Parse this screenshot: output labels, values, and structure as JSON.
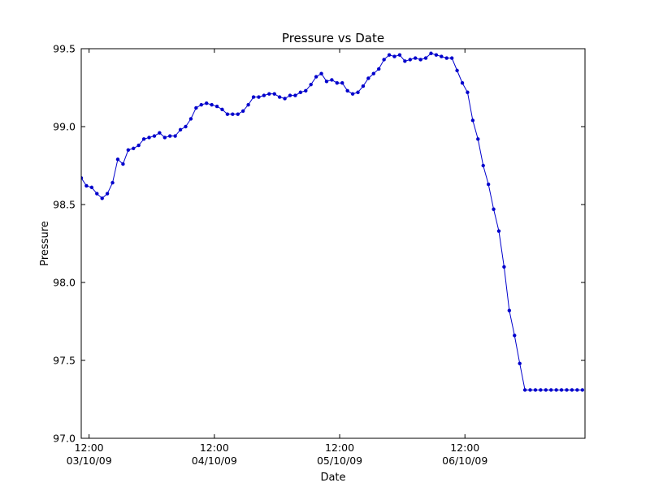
{
  "chart_data": {
    "type": "line",
    "title": "Pressure vs Date",
    "xlabel": "Date",
    "ylabel": "Pressure",
    "ylim": [
      97.0,
      99.5
    ],
    "xlim": [
      "2009-10-03 10:30",
      "2009-10-07 11:00"
    ],
    "yticks": [
      "97.0",
      "97.5",
      "98.0",
      "98.5",
      "99.0",
      "99.5"
    ],
    "xticks": [
      {
        "at": "2009-10-03 12:00",
        "time": "12:00",
        "date": "03/10/09"
      },
      {
        "at": "2009-10-04 12:00",
        "time": "12:00",
        "date": "04/10/09"
      },
      {
        "at": "2009-10-05 12:00",
        "time": "12:00",
        "date": "05/10/09"
      },
      {
        "at": "2009-10-06 12:00",
        "time": "12:00",
        "date": "06/10/09"
      }
    ],
    "grid": false,
    "line_color": "#0000cc",
    "marker_color": "#0000cc",
    "series": [
      {
        "x": [
          "2009-10-03 10:30",
          "2009-10-03 11:30",
          "2009-10-03 12:30",
          "2009-10-03 13:30",
          "2009-10-03 14:30",
          "2009-10-03 15:30",
          "2009-10-03 16:30",
          "2009-10-03 17:30",
          "2009-10-03 18:30",
          "2009-10-03 19:30",
          "2009-10-03 20:30",
          "2009-10-03 21:30",
          "2009-10-03 22:30",
          "2009-10-03 23:30",
          "2009-10-04 00:30",
          "2009-10-04 01:30",
          "2009-10-04 02:30",
          "2009-10-04 03:30",
          "2009-10-04 04:30",
          "2009-10-04 05:30",
          "2009-10-04 06:30",
          "2009-10-04 07:30",
          "2009-10-04 08:30",
          "2009-10-04 09:30",
          "2009-10-04 10:30",
          "2009-10-04 11:30",
          "2009-10-04 12:30",
          "2009-10-04 13:30",
          "2009-10-04 14:30",
          "2009-10-04 15:30",
          "2009-10-04 16:30",
          "2009-10-04 17:30",
          "2009-10-04 18:30",
          "2009-10-04 19:30",
          "2009-10-04 20:30",
          "2009-10-04 21:30",
          "2009-10-04 22:30",
          "2009-10-04 23:30",
          "2009-10-05 00:30",
          "2009-10-05 01:30",
          "2009-10-05 02:30",
          "2009-10-05 03:30",
          "2009-10-05 04:30",
          "2009-10-05 05:30",
          "2009-10-05 06:30",
          "2009-10-05 07:30",
          "2009-10-05 08:30",
          "2009-10-05 09:30",
          "2009-10-05 10:30",
          "2009-10-05 11:30",
          "2009-10-05 12:30",
          "2009-10-05 13:30",
          "2009-10-05 14:30",
          "2009-10-05 15:30",
          "2009-10-05 16:30",
          "2009-10-05 17:30",
          "2009-10-05 18:30",
          "2009-10-05 19:30",
          "2009-10-05 20:30",
          "2009-10-05 21:30",
          "2009-10-05 22:30",
          "2009-10-05 23:30",
          "2009-10-06 00:30",
          "2009-10-06 01:30",
          "2009-10-06 02:30",
          "2009-10-06 03:30",
          "2009-10-06 04:30",
          "2009-10-06 05:30",
          "2009-10-06 06:30",
          "2009-10-06 07:30",
          "2009-10-06 08:30",
          "2009-10-06 09:30",
          "2009-10-06 10:30",
          "2009-10-06 11:30",
          "2009-10-06 12:30",
          "2009-10-06 13:30",
          "2009-10-06 14:30",
          "2009-10-06 15:30",
          "2009-10-06 16:30",
          "2009-10-06 17:30",
          "2009-10-06 18:30",
          "2009-10-06 19:30",
          "2009-10-06 20:30",
          "2009-10-06 21:30",
          "2009-10-06 22:30",
          "2009-10-06 23:30",
          "2009-10-07 00:30",
          "2009-10-07 01:30",
          "2009-10-07 02:30",
          "2009-10-07 03:30",
          "2009-10-07 04:30",
          "2009-10-07 05:30",
          "2009-10-07 06:30",
          "2009-10-07 07:30",
          "2009-10-07 08:30",
          "2009-10-07 09:30",
          "2009-10-07 10:30"
        ],
        "y": [
          98.67,
          98.62,
          98.61,
          98.57,
          98.54,
          98.57,
          98.64,
          98.79,
          98.76,
          98.85,
          98.86,
          98.88,
          98.92,
          98.93,
          98.94,
          98.96,
          98.93,
          98.94,
          98.94,
          98.98,
          99.0,
          99.05,
          99.12,
          99.14,
          99.15,
          99.14,
          99.13,
          99.11,
          99.08,
          99.08,
          99.08,
          99.1,
          99.14,
          99.19,
          99.19,
          99.2,
          99.21,
          99.21,
          99.19,
          99.18,
          99.2,
          99.2,
          99.22,
          99.23,
          99.27,
          99.32,
          99.34,
          99.29,
          99.3,
          99.28,
          99.28,
          99.23,
          99.21,
          99.22,
          99.26,
          99.31,
          99.34,
          99.37,
          99.43,
          99.46,
          99.45,
          99.46,
          99.42,
          99.43,
          99.44,
          99.43,
          99.44,
          99.47,
          99.46,
          99.45,
          99.44,
          99.44,
          99.36,
          99.28,
          99.22,
          99.04,
          98.92,
          98.75,
          98.63,
          98.47,
          98.33,
          98.1,
          97.82,
          97.66,
          97.48,
          97.31,
          97.31,
          97.31,
          97.31,
          97.31,
          97.31,
          97.31,
          97.31,
          97.31,
          97.31,
          97.31,
          97.31
        ]
      }
    ]
  }
}
